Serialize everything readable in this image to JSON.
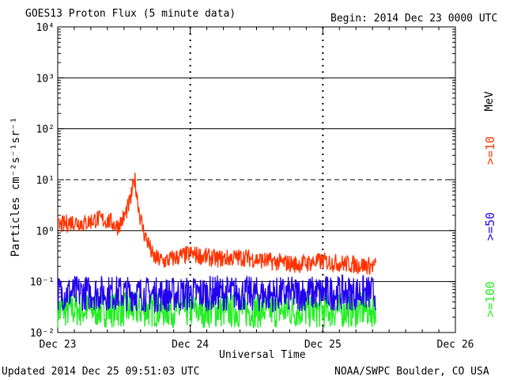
{
  "header": {
    "title": "GOES13 Proton Flux (5 minute data)",
    "begin": "Begin: 2014 Dec 23 0000 UTC"
  },
  "footer": {
    "updated": "Updated 2014 Dec 25 09:51:03 UTC",
    "credit": "NOAA/SWPC Boulder, CO USA"
  },
  "legend": {
    "unit": "MeV",
    "colors": {
      ">=10": "#ff3300",
      ">=50": "#2200ee",
      ">=100": "#22ee22"
    }
  },
  "chart_data": {
    "type": "line",
    "title": "GOES13 Proton Flux (5 minute data)",
    "xlabel": "Universal Time",
    "ylabel": "Particles cm⁻²s⁻¹sr⁻¹",
    "x_ticks": [
      "Dec 23",
      "Dec 24",
      "Dec 25",
      "Dec 26"
    ],
    "xlim_days": [
      0,
      3
    ],
    "y_scale": "log",
    "ylim": [
      0.01,
      10000
    ],
    "y_ticks": [
      "10⁻²",
      "10⁻¹",
      "10⁰",
      "10¹",
      "10²",
      "10³",
      "10⁴"
    ],
    "grid": "horizontal at each decade",
    "legend_position": "right side, rotated",
    "series": [
      {
        "name": ">=10",
        "color": "#ff3300",
        "x": [
          0.0,
          0.1,
          0.2,
          0.3,
          0.4,
          0.45,
          0.5,
          0.55,
          0.58,
          0.6,
          0.62,
          0.65,
          0.68,
          0.72,
          0.8,
          0.9,
          1.0,
          1.2,
          1.4,
          1.6,
          1.8,
          2.0,
          2.2,
          2.4
        ],
        "y": [
          1.2,
          1.5,
          1.4,
          1.7,
          1.5,
          1.2,
          1.8,
          4.0,
          11.0,
          4.5,
          2.0,
          0.9,
          0.6,
          0.3,
          0.25,
          0.3,
          0.35,
          0.28,
          0.3,
          0.25,
          0.22,
          0.25,
          0.22,
          0.2
        ]
      },
      {
        "name": ">=50",
        "color": "#2200ee",
        "x": [
          0.0,
          0.4,
          0.8,
          1.2,
          1.6,
          2.0,
          2.4
        ],
        "y": [
          0.06,
          0.06,
          0.055,
          0.06,
          0.055,
          0.06,
          0.06
        ]
      },
      {
        "name": ">=100",
        "color": "#22ee22",
        "x": [
          0.0,
          0.4,
          0.8,
          1.2,
          1.6,
          2.0,
          2.4
        ],
        "y": [
          0.028,
          0.028,
          0.028,
          0.027,
          0.027,
          0.027,
          0.028
        ]
      }
    ]
  }
}
